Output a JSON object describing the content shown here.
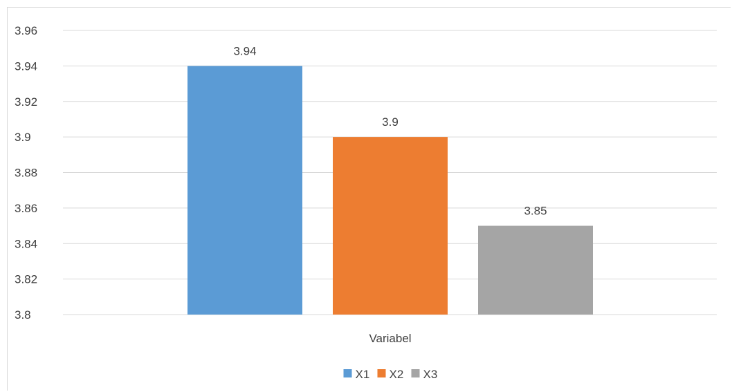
{
  "chart_data": {
    "type": "bar",
    "categories": [
      "Variabel"
    ],
    "series": [
      {
        "name": "X1",
        "values": [
          3.94
        ],
        "color": "#5b9bd5"
      },
      {
        "name": "X2",
        "values": [
          3.9
        ],
        "color": "#ed7d31"
      },
      {
        "name": "X3",
        "values": [
          3.85
        ],
        "color": "#a5a5a5"
      }
    ],
    "data_labels": [
      "3.94",
      "3.9",
      "3.85"
    ],
    "y_ticks": [
      "3.8",
      "3.82",
      "3.84",
      "3.86",
      "3.88",
      "3.9",
      "3.92",
      "3.94",
      "3.96"
    ],
    "ylim": [
      3.8,
      3.96
    ],
    "grid": true,
    "legend": "bottom",
    "title": "",
    "xlabel": "",
    "ylabel": ""
  },
  "colors": {
    "gridline": "#d9d9d9",
    "text": "#404040"
  }
}
